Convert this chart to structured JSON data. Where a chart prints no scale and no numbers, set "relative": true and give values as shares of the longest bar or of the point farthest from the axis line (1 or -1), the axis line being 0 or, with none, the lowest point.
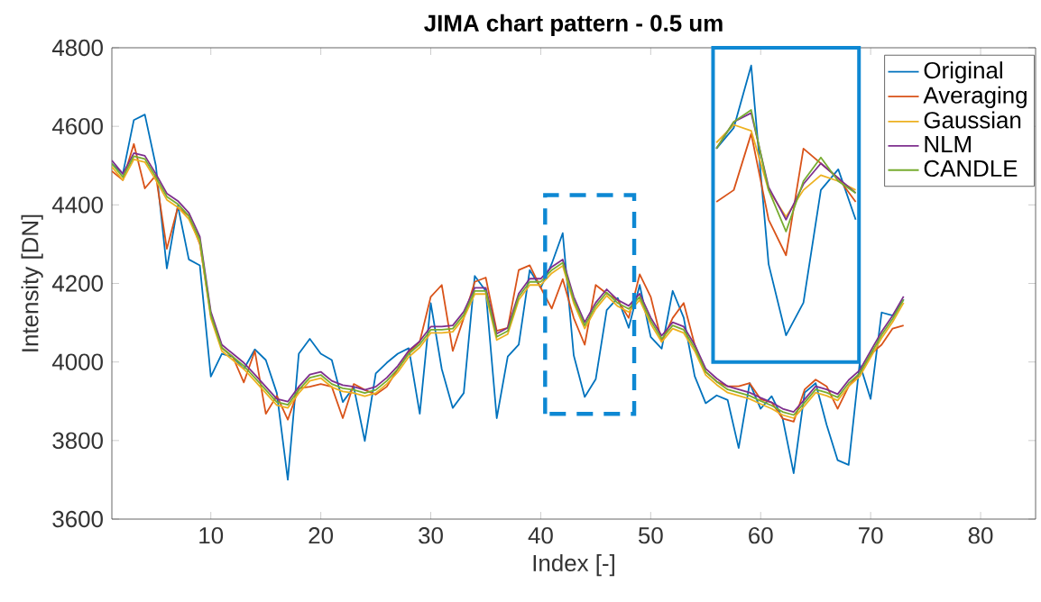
{
  "chart_data": [
    {
      "type": "line",
      "title": "JIMA chart pattern - 0.5 um",
      "xlabel": "Index [-]",
      "ylabel": "Intensity [DN]",
      "x": [
        1,
        2,
        3,
        4,
        5,
        6,
        7,
        8,
        9,
        10,
        11,
        12,
        13,
        14,
        15,
        16,
        17,
        18,
        19,
        20,
        21,
        22,
        23,
        24,
        25,
        26,
        27,
        28,
        29,
        30,
        31,
        32,
        33,
        34,
        35,
        36,
        37,
        38,
        39,
        40,
        41,
        42,
        43,
        44,
        45,
        46,
        47,
        48,
        49,
        50,
        51,
        52,
        53,
        54,
        55,
        56,
        57,
        58,
        59,
        60,
        61,
        62,
        63,
        64,
        65,
        66,
        67,
        68,
        69,
        70,
        71,
        72,
        73
      ],
      "xlim": [
        1,
        85
      ],
      "ylim": [
        3600,
        4800
      ],
      "xticks": [
        10,
        20,
        30,
        40,
        50,
        60,
        70,
        80
      ],
      "yticks": [
        3600,
        3800,
        4000,
        4200,
        4400,
        4600,
        4800
      ],
      "legend": "top right",
      "marker": "none",
      "line_style": "solid",
      "series": [
        {
          "name": "Original",
          "color": "#0072bd",
          "values": [
            4505,
            4479,
            4616,
            4630,
            4500,
            4238,
            4398,
            4261,
            4246,
            3963,
            4021,
            4013,
            3982,
            4032,
            4005,
            3921,
            3700,
            4021,
            4059,
            4021,
            4005,
            3898,
            3936,
            3799,
            3971,
            3998,
            4021,
            4035,
            3868,
            4150,
            3982,
            3883,
            3921,
            4219,
            4181,
            3857,
            4014,
            4044,
            4234,
            4189,
            4250,
            4328,
            4017,
            3911,
            3956,
            4132,
            4163,
            4087,
            4196,
            4064,
            4034,
            4181,
            4113,
            3964,
            3895,
            3915,
            3903,
            3781,
            3946,
            3881,
            3913,
            3856,
            3717,
            3922,
            3946,
            3840,
            3750,
            3738,
            3996,
            3906,
            4126,
            4118,
            4159
          ]
        },
        {
          "name": "Averaging",
          "color": "#d95319",
          "values": [
            4486,
            4463,
            4555,
            4442,
            4475,
            4288,
            4394,
            4372,
            4300,
            4120,
            4036,
            4013,
            3948,
            4028,
            3868,
            3914,
            3853,
            3933,
            3937,
            3944,
            3937,
            3857,
            3944,
            3929,
            3917,
            3937,
            3982,
            4024,
            4052,
            4166,
            4196,
            4028,
            4112,
            4204,
            4215,
            4079,
            4087,
            4234,
            4246,
            4189,
            4136,
            4211,
            4112,
            4044,
            4196,
            4174,
            4158,
            4112,
            4223,
            4166,
            4052,
            4112,
            4150,
            4044,
            3975,
            3950,
            3938,
            3938,
            3946,
            3905,
            3897,
            3856,
            3848,
            3930,
            3955,
            3938,
            3881,
            3938,
            3971,
            4020,
            4044,
            4085,
            4093
          ]
        },
        {
          "name": "Gaussian",
          "color": "#edb120",
          "values": [
            4497,
            4463,
            4516,
            4509,
            4463,
            4413,
            4394,
            4364,
            4303,
            4112,
            4028,
            4005,
            3982,
            3952,
            3921,
            3890,
            3883,
            3921,
            3952,
            3959,
            3936,
            3925,
            3921,
            3913,
            3921,
            3944,
            3974,
            4013,
            4037,
            4074,
            4074,
            4077,
            4112,
            4173,
            4173,
            4056,
            4071,
            4158,
            4196,
            4196,
            4226,
            4245,
            4150,
            4085,
            4135,
            4169,
            4142,
            4127,
            4158,
            4097,
            4051,
            4085,
            4074,
            4028,
            3967,
            3942,
            3922,
            3914,
            3906,
            3893,
            3881,
            3865,
            3857,
            3889,
            3922,
            3914,
            3902,
            3938,
            3963,
            4012,
            4061,
            4102,
            4151
          ]
        },
        {
          "name": "NLM",
          "color": "#7e2f8e",
          "values": [
            4513,
            4479,
            4532,
            4525,
            4479,
            4429,
            4410,
            4380,
            4319,
            4128,
            4044,
            4021,
            3998,
            3968,
            3937,
            3906,
            3899,
            3937,
            3968,
            3975,
            3952,
            3941,
            3937,
            3929,
            3937,
            3960,
            3990,
            4029,
            4053,
            4090,
            4090,
            4093,
            4128,
            4189,
            4189,
            4072,
            4087,
            4174,
            4212,
            4212,
            4242,
            4261,
            4166,
            4101,
            4151,
            4185,
            4158,
            4143,
            4174,
            4113,
            4067,
            4101,
            4090,
            4044,
            3983,
            3958,
            3938,
            3930,
            3922,
            3909,
            3897,
            3881,
            3873,
            3905,
            3938,
            3930,
            3918,
            3954,
            3979,
            4028,
            4077,
            4118,
            4167
          ]
        },
        {
          "name": "CANDLE",
          "color": "#77ac30",
          "values": [
            4505,
            4471,
            4524,
            4517,
            4471,
            4421,
            4402,
            4372,
            4311,
            4120,
            4036,
            4013,
            3990,
            3960,
            3929,
            3898,
            3891,
            3929,
            3960,
            3967,
            3944,
            3933,
            3929,
            3921,
            3929,
            3952,
            3982,
            4021,
            4045,
            4082,
            4082,
            4085,
            4120,
            4181,
            4181,
            4064,
            4079,
            4166,
            4204,
            4204,
            4234,
            4253,
            4158,
            4093,
            4143,
            4177,
            4150,
            4135,
            4166,
            4105,
            4059,
            4093,
            4082,
            4036,
            3975,
            3950,
            3930,
            3922,
            3914,
            3901,
            3889,
            3873,
            3865,
            3897,
            3930,
            3922,
            3910,
            3946,
            3971,
            4020,
            4069,
            4110,
            4159
          ]
        }
      ]
    },
    {
      "type": "line",
      "relative": true,
      "categories": [
        null,
        null,
        null,
        null,
        null,
        null,
        null,
        null,
        null
      ],
      "series": [
        {
          "color": "#0072bd",
          "values": [
            0.72,
            0.79,
            1,
            0.33,
            0.09,
            0.2,
            0.58,
            0.65,
            0.48
          ]
        },
        {
          "color": "#d95319",
          "values": [
            0.54,
            0.58,
            0.77,
            0.48,
            0.36,
            0.72,
            0.67,
            0.62,
            0.54
          ]
        },
        {
          "color": "#edb120",
          "values": [
            0.74,
            0.8,
            0.78,
            0.58,
            0.49,
            0.58,
            0.63,
            0.61,
            0.58
          ]
        },
        {
          "color": "#7e2f8e",
          "values": [
            0.72,
            0.81,
            0.84,
            0.59,
            0.48,
            0.6,
            0.67,
            0.62,
            0.57
          ]
        },
        {
          "color": "#77ac30",
          "values": [
            0.72,
            0.81,
            0.85,
            0.58,
            0.44,
            0.61,
            0.69,
            0.61,
            0.57
          ]
        }
      ]
    }
  ]
}
